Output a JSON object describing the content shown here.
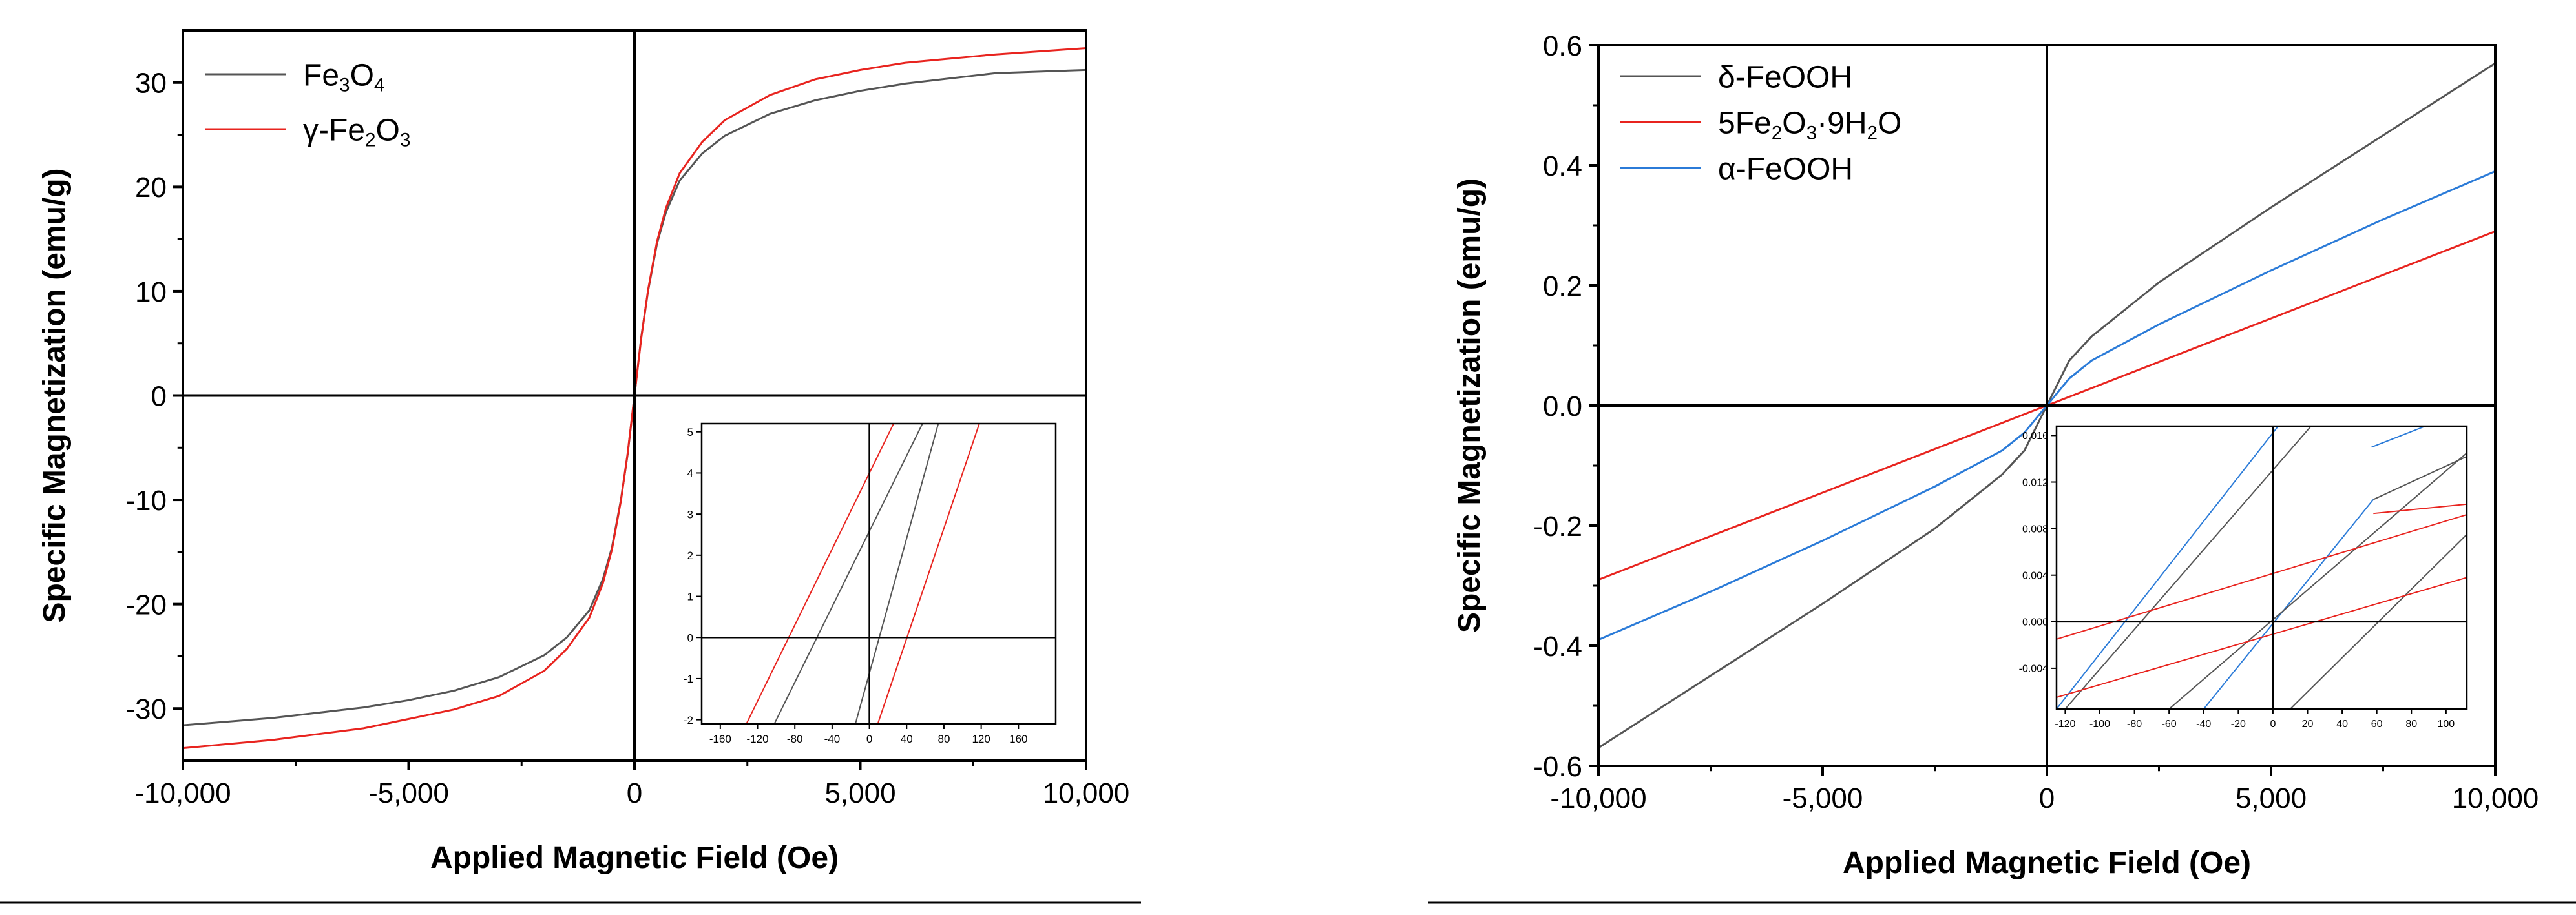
{
  "chart_data": [
    {
      "type": "line",
      "panel": "left",
      "xlabel": "Applied Magnetic Field (Oe)",
      "ylabel": "Specific Magnetization (emu/g)",
      "xlim": [
        -10000,
        10000
      ],
      "ylim": [
        -35,
        35
      ],
      "xticks": [
        -10000,
        -5000,
        0,
        5000,
        10000
      ],
      "xtick_labels": [
        "-10,000",
        "-5,000",
        "0",
        "5,000",
        "10,000"
      ],
      "yticks": [
        -30,
        -20,
        -10,
        0,
        10,
        20,
        30
      ],
      "ytick_labels": [
        "-30",
        "-20",
        "-10",
        "0",
        "10",
        "20",
        "30"
      ],
      "legend": {
        "placement": "top-left"
      },
      "series": [
        {
          "name": "Fe3O4",
          "label_parts": [
            {
              "text": "Fe",
              "sub": false
            },
            {
              "text": "3",
              "sub": true
            },
            {
              "text": "O",
              "sub": false
            },
            {
              "text": "4",
              "sub": true
            }
          ],
          "color": "#555555",
          "x": [
            -10000,
            -8000,
            -6000,
            -5000,
            -4000,
            -3000,
            -2000,
            -1500,
            -1000,
            -700,
            -500,
            -300,
            -150,
            0,
            150,
            300,
            500,
            700,
            1000,
            1500,
            2000,
            3000,
            4000,
            5000,
            6000,
            8000,
            10000
          ],
          "y": [
            -31.6,
            -30.9,
            -29.9,
            -29.2,
            -28.3,
            -27.0,
            -24.9,
            -23.2,
            -20.6,
            -17.6,
            -14.6,
            -10.0,
            -5.6,
            0,
            5.6,
            10.0,
            14.6,
            17.6,
            20.6,
            23.2,
            24.9,
            27.0,
            28.3,
            29.2,
            29.9,
            30.9,
            31.2
          ]
        },
        {
          "name": "γ-Fe2O3",
          "label_parts": [
            {
              "text": "γ-Fe",
              "sub": false
            },
            {
              "text": "2",
              "sub": true
            },
            {
              "text": "O",
              "sub": false
            },
            {
              "text": "3",
              "sub": true
            }
          ],
          "color": "#e8241f",
          "x": [
            -10000,
            -8000,
            -6000,
            -5000,
            -4000,
            -3000,
            -2000,
            -1500,
            -1000,
            -700,
            -500,
            -300,
            -150,
            0,
            150,
            300,
            500,
            700,
            1000,
            1500,
            2000,
            3000,
            4000,
            5000,
            6000,
            8000,
            10000
          ],
          "y": [
            -33.8,
            -33.0,
            -31.9,
            -31.0,
            -30.1,
            -28.8,
            -26.4,
            -24.3,
            -21.3,
            -18.0,
            -14.8,
            -10.1,
            -5.5,
            0,
            5.5,
            10.1,
            14.8,
            18.0,
            21.3,
            24.3,
            26.4,
            28.8,
            30.3,
            31.2,
            31.9,
            32.7,
            33.3
          ]
        }
      ],
      "inset": {
        "xlim": [
          -180,
          200
        ],
        "ylim": [
          -2.1,
          5.2
        ],
        "xticks": [
          -160,
          -120,
          -80,
          -40,
          0,
          40,
          80,
          120,
          160
        ],
        "xtick_labels": [
          "-160",
          "-120",
          "-80",
          "-40",
          "0",
          "40",
          "80",
          "120",
          "160"
        ],
        "yticks": [
          -2,
          -1,
          0,
          1,
          2,
          3,
          4,
          5
        ],
        "ytick_labels": [
          "-2",
          "-1",
          "0",
          "1",
          "2",
          "3",
          "4",
          "5"
        ],
        "lines": [
          {
            "series": "Fe3O4",
            "color": "#555555",
            "x": [
              -102,
              57
            ],
            "y": [
              -2.1,
              5.2
            ]
          },
          {
            "series": "Fe3O4",
            "color": "#555555",
            "x": [
              -15,
              74
            ],
            "y": [
              -2.1,
              5.2
            ]
          },
          {
            "series": "γ-Fe2O3",
            "color": "#e8241f",
            "x": [
              -132,
              26
            ],
            "y": [
              -2.1,
              5.2
            ]
          },
          {
            "series": "γ-Fe2O3",
            "color": "#e8241f",
            "x": [
              9,
              118
            ],
            "y": [
              -2.1,
              5.2
            ]
          }
        ]
      }
    },
    {
      "type": "line",
      "panel": "right",
      "xlabel": "Applied Magnetic Field (Oe)",
      "ylabel": "Specific Magnetization (emu/g)",
      "xlim": [
        -10000,
        10000
      ],
      "ylim": [
        -0.6,
        0.6
      ],
      "xticks": [
        -10000,
        -5000,
        0,
        5000,
        10000
      ],
      "xtick_labels": [
        "-10,000",
        "-5,000",
        "0",
        "5,000",
        "10,000"
      ],
      "yticks": [
        -0.6,
        -0.4,
        -0.2,
        0.0,
        0.2,
        0.4,
        0.6
      ],
      "ytick_labels": [
        "-0.6",
        "-0.4",
        "-0.2",
        "0.0",
        "0.2",
        "0.4",
        "0.6"
      ],
      "legend": {
        "placement": "top-left"
      },
      "series": [
        {
          "name": "δ-FeOOH",
          "label_parts": [
            {
              "text": "δ-FeOOH",
              "sub": false
            }
          ],
          "color": "#555555",
          "x": [
            -10000,
            -7500,
            -5000,
            -2500,
            -1000,
            -500,
            0,
            500,
            1000,
            2500,
            5000,
            7500,
            10000
          ],
          "y": [
            -0.57,
            -0.45,
            -0.33,
            -0.205,
            -0.115,
            -0.075,
            0,
            0.075,
            0.115,
            0.205,
            0.33,
            0.45,
            0.57
          ]
        },
        {
          "name": "5Fe2O3·9H2O",
          "label_parts": [
            {
              "text": "5Fe",
              "sub": false
            },
            {
              "text": "2",
              "sub": true
            },
            {
              "text": "O",
              "sub": false
            },
            {
              "text": "3",
              "sub": true
            },
            {
              "text": "·9H",
              "sub": false
            },
            {
              "text": "2",
              "sub": true
            },
            {
              "text": "O",
              "sub": false
            }
          ],
          "color": "#e8241f",
          "x": [
            -10000,
            -5000,
            0,
            5000,
            10000
          ],
          "y": [
            -0.29,
            -0.145,
            0,
            0.145,
            0.29
          ]
        },
        {
          "name": "α-FeOOH",
          "label_parts": [
            {
              "text": "α-FeOOH",
              "sub": false
            }
          ],
          "color": "#2b7bd8",
          "x": [
            -10000,
            -7500,
            -5000,
            -2500,
            -1000,
            -500,
            0,
            500,
            1000,
            2500,
            5000,
            7500,
            10000
          ],
          "y": [
            -0.39,
            -0.31,
            -0.225,
            -0.135,
            -0.075,
            -0.045,
            0,
            0.045,
            0.075,
            0.135,
            0.225,
            0.31,
            0.39
          ]
        }
      ],
      "inset": {
        "xlim": [
          -125,
          112
        ],
        "ylim": [
          -0.0075,
          0.0168
        ],
        "xticks": [
          -120,
          -100,
          -80,
          -60,
          -40,
          -20,
          0,
          20,
          40,
          60,
          80,
          100
        ],
        "xtick_labels": [
          "-120",
          "-100",
          "-80",
          "-60",
          "-40",
          "-20",
          "0",
          "20",
          "40",
          "60",
          "80",
          "100"
        ],
        "yticks": [
          -0.004,
          0.0,
          0.004,
          0.008,
          0.012,
          0.016
        ],
        "ytick_labels": [
          "-0.004",
          "0.000",
          "0.004",
          "0.008",
          "0.012",
          "0.016"
        ],
        "lines": [
          {
            "series": "α-FeOOH",
            "color": "#2b7bd8",
            "x": [
              -125,
              3
            ],
            "y": [
              -0.0075,
              0.0168
            ]
          },
          {
            "series": "α-FeOOH",
            "color": "#2b7bd8",
            "x": [
              -40,
              58
            ],
            "y": [
              -0.0075,
              0.0105
            ]
          },
          {
            "series": "α-FeOOH",
            "color": "#2b7bd8",
            "x": [
              57,
              88
            ],
            "y": [
              0.015,
              0.0168
            ]
          },
          {
            "series": "δ-FeOOH",
            "color": "#555555",
            "x": [
              -120,
              22
            ],
            "y": [
              -0.0075,
              0.0168
            ]
          },
          {
            "series": "δ-FeOOH",
            "color": "#555555",
            "x": [
              -60,
              112
            ],
            "y": [
              -0.0075,
              0.0145
            ]
          },
          {
            "series": "δ-FeOOH",
            "color": "#555555",
            "x": [
              10,
              112
            ],
            "y": [
              -0.0075,
              0.0075
            ]
          },
          {
            "series": "δ-FeOOH",
            "color": "#555555",
            "x": [
              58,
              112
            ],
            "y": [
              0.0105,
              0.0142
            ]
          },
          {
            "series": "5Fe2O3·9H2O",
            "color": "#e8241f",
            "x": [
              -125,
              112
            ],
            "y": [
              -0.0015,
              0.0092
            ]
          },
          {
            "series": "5Fe2O3·9H2O",
            "color": "#e8241f",
            "x": [
              -125,
              112
            ],
            "y": [
              -0.0065,
              0.0038
            ]
          },
          {
            "series": "5Fe2O3·9H2O",
            "color": "#e8241f",
            "x": [
              58,
              112
            ],
            "y": [
              0.0093,
              0.0101
            ]
          }
        ]
      }
    }
  ]
}
